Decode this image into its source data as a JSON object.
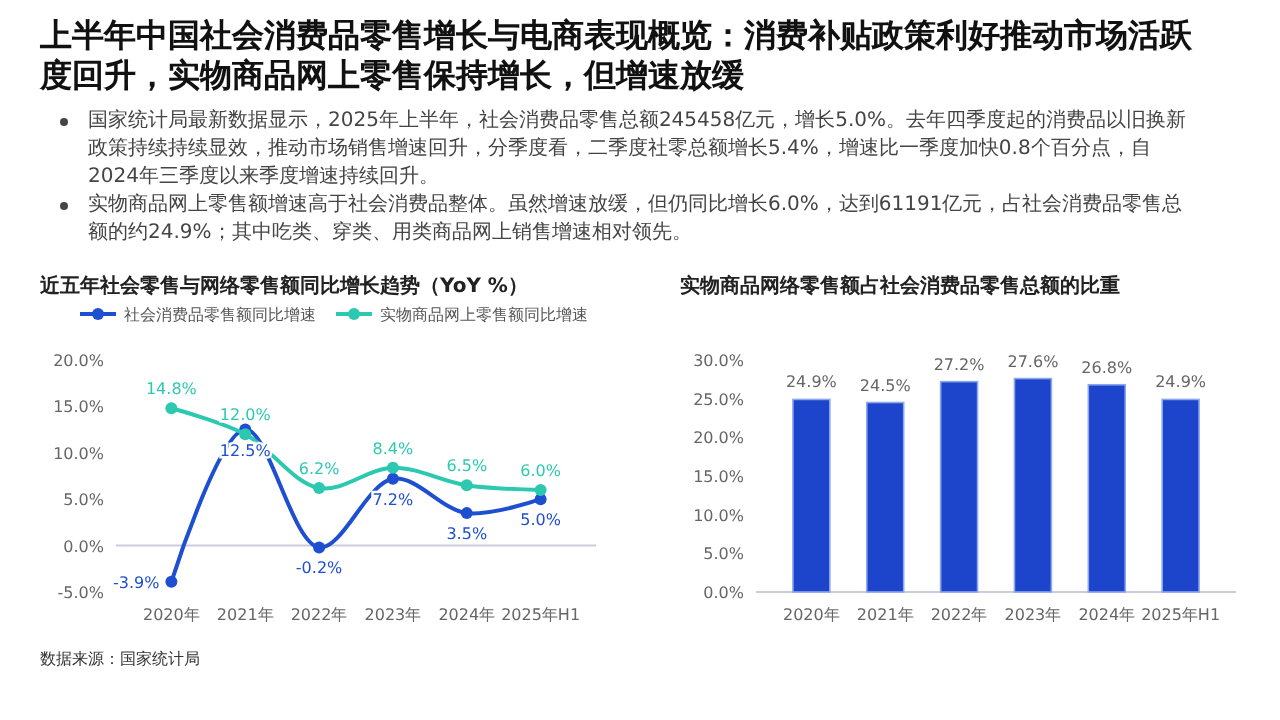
{
  "chart_data": [
    {
      "type": "other",
      "title": "上半年中国社会消费品零售增长与电商表现概览：消费补贴政策利好推动市场活跃度回升，实物商品网上零售保持增长，但增速放缓",
      "annotations": [
        "国家统计局最新数据显示，2025年上半年，社会消费品零售总额245458亿元，增长5.0%。去年四季度起的消费品以旧换新政策持续持续显效，推动市场销售增速回升，分季度看，二季度社零总额增长5.4%，增速比一季度加快0.8个百分点，自2024年三季度以来季度增速持续回升。",
        "实物商品网上零售额增速高于社会消费品整体。虽然增速放缓，但仍同比增长6.0%，达到61191亿元，占社会消费品零售总额的约24.9%；其中吃类、穿类、用类商品网上销售增速相对领先。"
      ]
    },
    {
      "type": "line",
      "title": "近五年社会零售与网络零售额同比增长趋势（YoY %）",
      "categories": [
        "2020年",
        "2021年",
        "2022年",
        "2023年",
        "2024年",
        "2025年H1"
      ],
      "series": [
        {
          "name": "社会消费品零售额同比增速",
          "color": "#1f4fd1",
          "values": [
            -3.9,
            12.5,
            -0.2,
            7.2,
            3.5,
            5.0
          ],
          "value_labels": [
            "-3.9%",
            "12.5%",
            "-0.2%",
            "7.2%",
            "3.5%",
            "5.0%"
          ]
        },
        {
          "name": "实物商品网上零售额同比增速",
          "color": "#2cc9b0",
          "values": [
            14.8,
            12.0,
            6.2,
            8.4,
            6.5,
            6.0
          ],
          "value_labels": [
            "14.8%",
            "12.0%",
            "6.2%",
            "8.4%",
            "6.5%",
            "6.0%"
          ]
        }
      ],
      "ylim": [
        -5,
        20
      ],
      "yticks": [
        {
          "value": -5,
          "label": "-5.0%"
        },
        {
          "value": 0,
          "label": "0.0%"
        },
        {
          "value": 5,
          "label": "5.0%"
        },
        {
          "value": 10,
          "label": "10.0%"
        },
        {
          "value": 15,
          "label": "15.0%"
        },
        {
          "value": 20,
          "label": "20.0%"
        }
      ],
      "legend": "top",
      "marker": "circle",
      "line_style": "solid",
      "annotations": [
        "数据来源：国家统计局"
      ]
    },
    {
      "type": "bar",
      "title": "实物商品网络零售额占社会消费品零售总额的比重",
      "categories": [
        "2020年",
        "2021年",
        "2022年",
        "2023年",
        "2024年",
        "2025年H1"
      ],
      "values": [
        24.9,
        24.5,
        27.2,
        27.6,
        26.8,
        24.9
      ],
      "value_labels": [
        "24.9%",
        "24.5%",
        "27.2%",
        "27.6%",
        "26.8%",
        "24.9%"
      ],
      "color": "#1d45cc",
      "ylim": [
        0,
        30
      ],
      "yticks": [
        {
          "value": 0,
          "label": "0.0%"
        },
        {
          "value": 5,
          "label": "5.0%"
        },
        {
          "value": 10,
          "label": "10.0%"
        },
        {
          "value": 15,
          "label": "15.0%"
        },
        {
          "value": 20,
          "label": "20.0%"
        },
        {
          "value": 25,
          "label": "25.0%"
        },
        {
          "value": 30,
          "label": "30.0%"
        }
      ]
    }
  ]
}
